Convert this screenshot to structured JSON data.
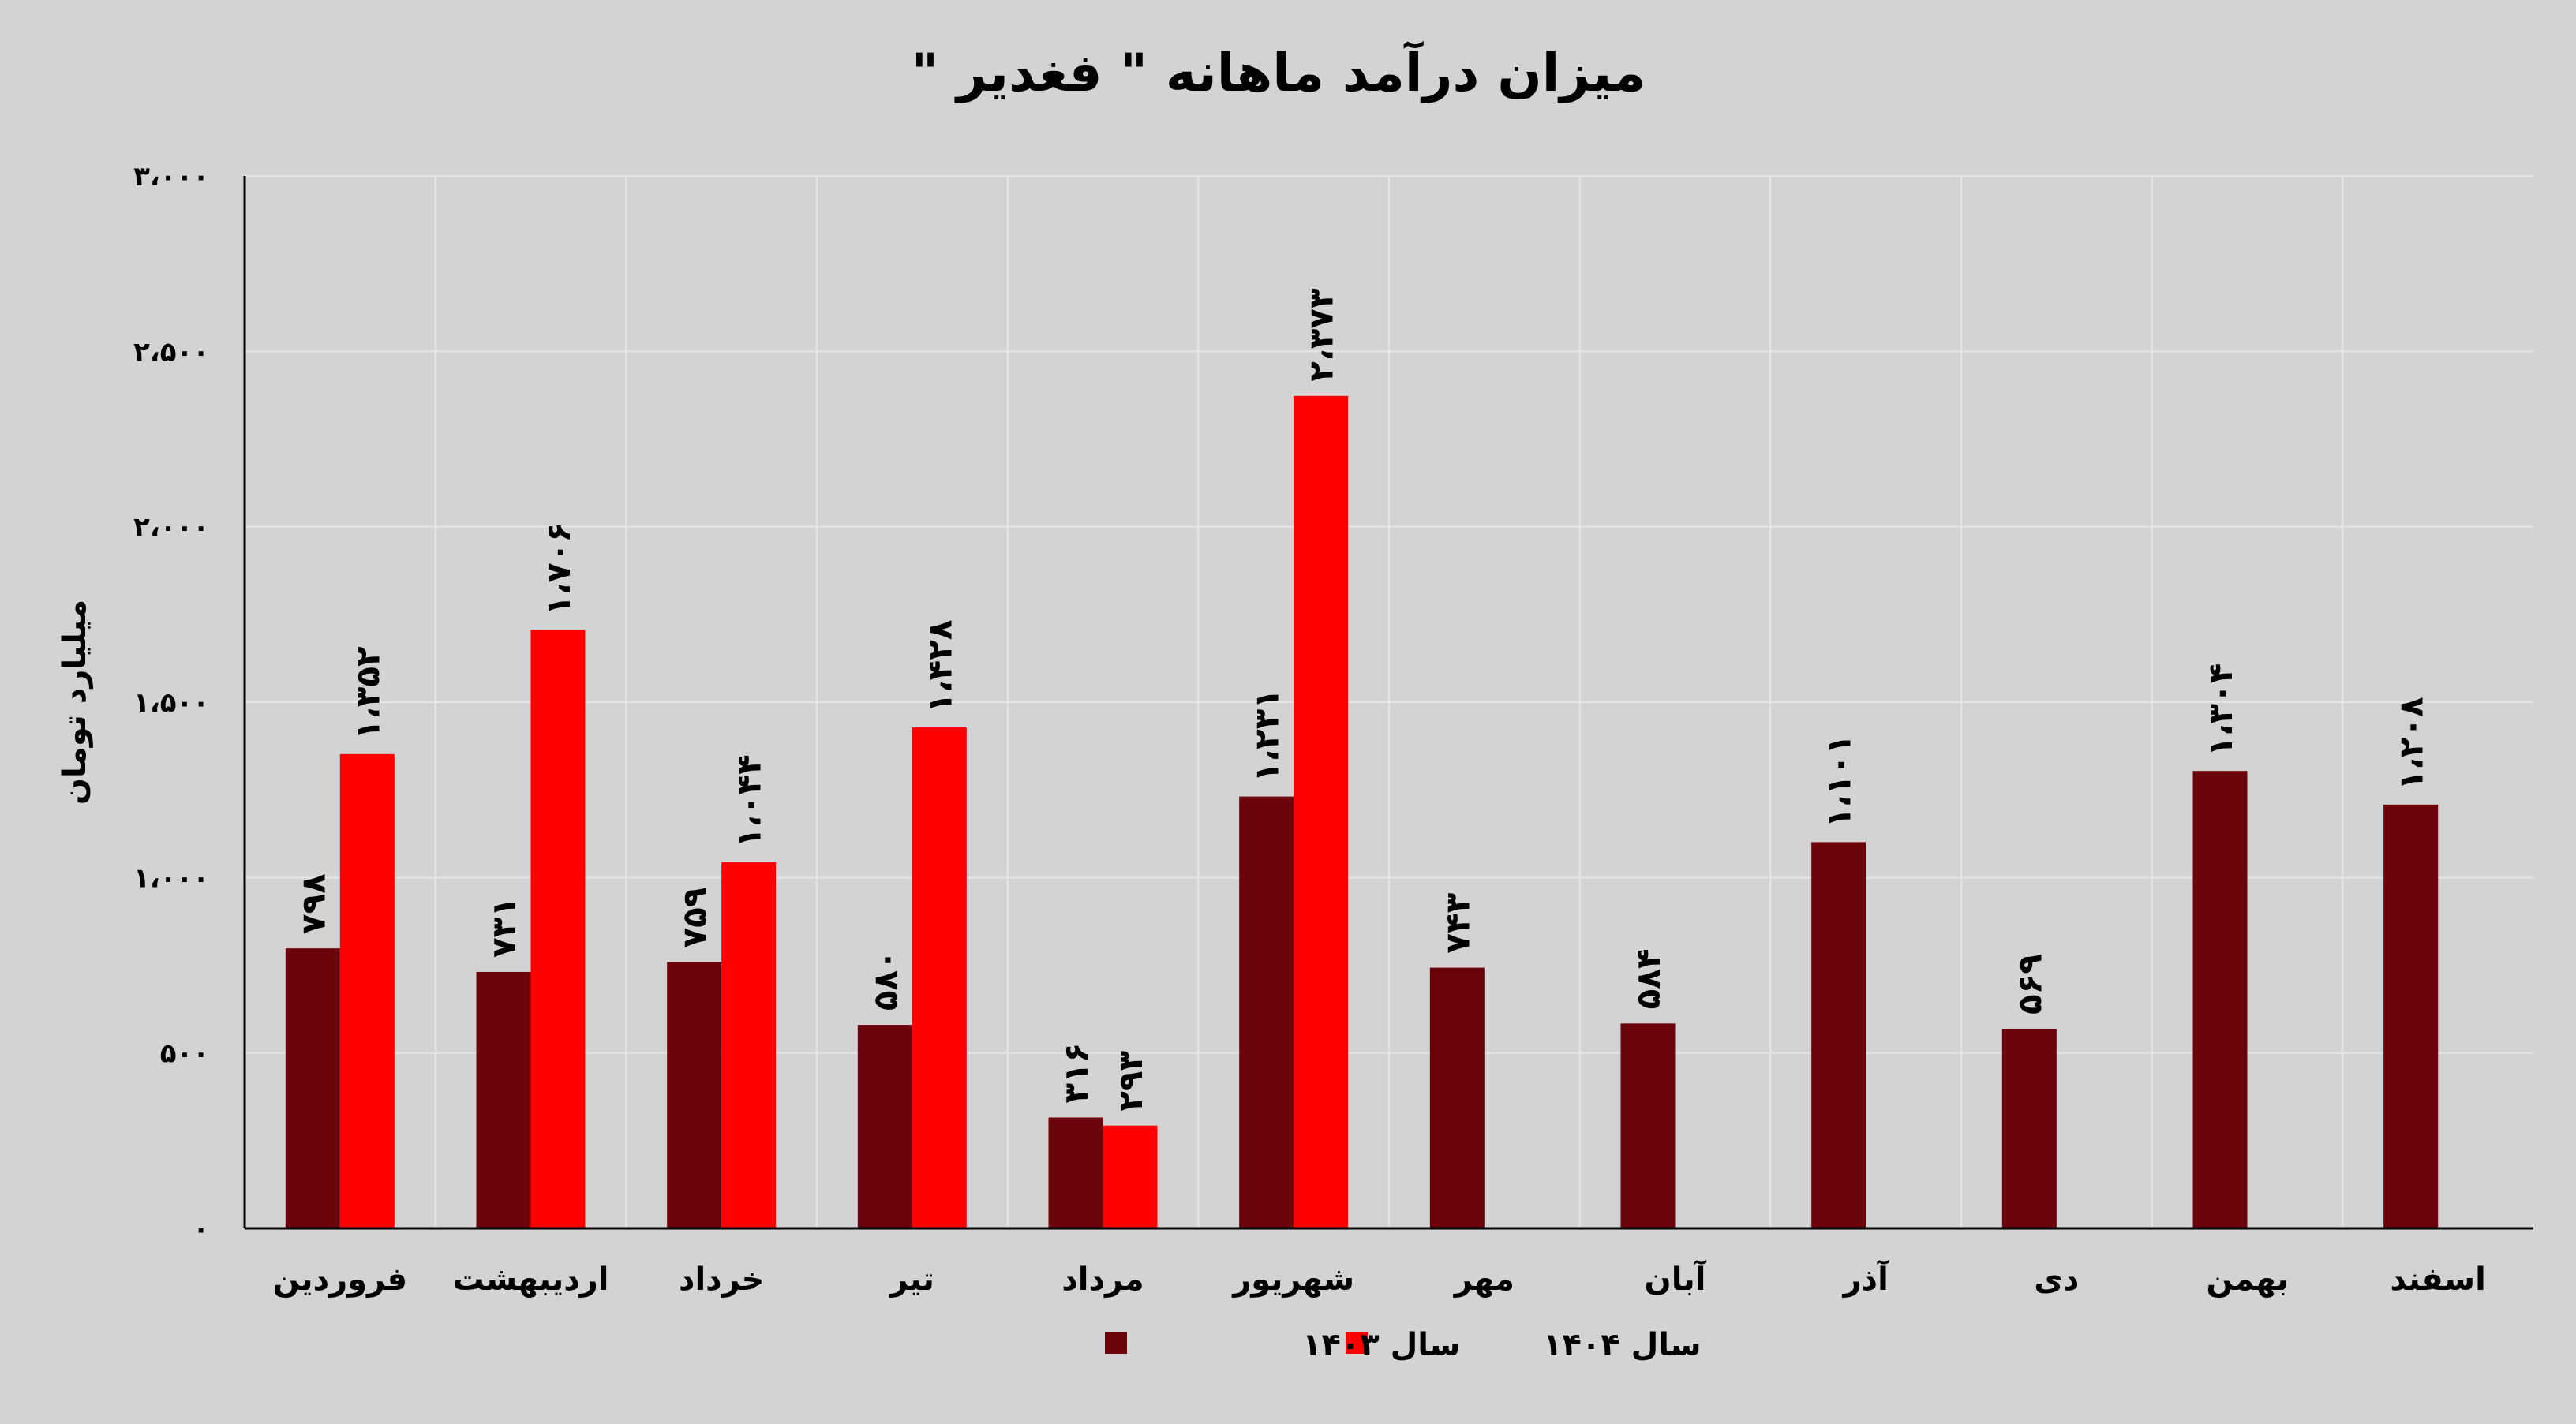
{
  "chart_data": {
    "type": "bar",
    "title": "میزان درآمد ماهانه \" فغدیر \"",
    "ylabel": "میلیارد تومان",
    "xlabel": "",
    "ylim": [
      0,
      3000
    ],
    "ytick_values": [
      0,
      500,
      1000,
      1500,
      2000,
      2500,
      3000
    ],
    "ytick_labels": [
      "۰",
      "۵۰۰",
      "۱،۰۰۰",
      "۱،۵۰۰",
      "۲،۰۰۰",
      "۲،۵۰۰",
      "۳،۰۰۰"
    ],
    "grid": true,
    "legend_position": "bottom",
    "categories": [
      "فروردین",
      "اردیبهشت",
      "خرداد",
      "تیر",
      "مرداد",
      "شهریور",
      "مهر",
      "آبان",
      "آذر",
      "دی",
      "بهمن",
      "اسفند"
    ],
    "series": [
      {
        "name": "سال ۱۴۰۳",
        "color": "#6b040b",
        "values": [
          798,
          731,
          759,
          580,
          316,
          1231,
          743,
          584,
          1101,
          569,
          1304,
          1208
        ],
        "labels": [
          "۷۹۸",
          "۷۳۱",
          "۷۵۹",
          "۵۸۰",
          "۳۱۶",
          "۱،۲۳۱",
          "۷۴۳",
          "۵۸۴",
          "۱،۱۰۱",
          "۵۶۹",
          "۱،۳۰۴",
          "۱،۲۰۸"
        ]
      },
      {
        "name": "سال ۱۴۰۴",
        "color": "#fe0000",
        "values": [
          1352,
          1706,
          1044,
          1428,
          293,
          2373,
          null,
          null,
          null,
          null,
          null,
          null
        ],
        "labels": [
          "۱،۳۵۲",
          "۱،۷۰۶",
          "۱،۰۴۴",
          "۱،۴۲۸",
          "۲۹۳",
          "۲،۳۷۳",
          "",
          "",
          "",
          "",
          "",
          ""
        ]
      }
    ]
  }
}
